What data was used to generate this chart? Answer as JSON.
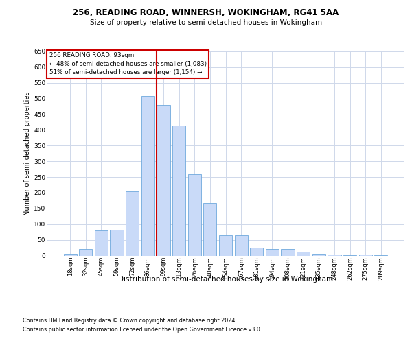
{
  "title1": "256, READING ROAD, WINNERSH, WOKINGHAM, RG41 5AA",
  "title2": "Size of property relative to semi-detached houses in Wokingham",
  "xlabel": "Distribution of semi-detached houses by size in Wokingham",
  "ylabel": "Number of semi-detached properties",
  "footnote1": "Contains HM Land Registry data © Crown copyright and database right 2024.",
  "footnote2": "Contains public sector information licensed under the Open Government Licence v3.0.",
  "annotation_title": "256 READING ROAD: 93sqm",
  "annotation_line1": "← 48% of semi-detached houses are smaller (1,083)",
  "annotation_line2": "51% of semi-detached houses are larger (1,154) →",
  "bar_color": "#c9daf8",
  "bar_edge_color": "#6fa8dc",
  "vline_color": "#cc0000",
  "annotation_box_edge": "#cc0000",
  "grid_color": "#cfd8ea",
  "categories": [
    "18sqm",
    "32sqm",
    "45sqm",
    "59sqm",
    "72sqm",
    "86sqm",
    "99sqm",
    "113sqm",
    "126sqm",
    "140sqm",
    "154sqm",
    "167sqm",
    "181sqm",
    "194sqm",
    "208sqm",
    "221sqm",
    "235sqm",
    "248sqm",
    "262sqm",
    "275sqm",
    "289sqm"
  ],
  "values": [
    5,
    20,
    80,
    82,
    205,
    508,
    480,
    415,
    258,
    168,
    65,
    65,
    25,
    20,
    20,
    13,
    5,
    4,
    2,
    4,
    2
  ],
  "ylim": [
    0,
    650
  ],
  "yticks": [
    0,
    50,
    100,
    150,
    200,
    250,
    300,
    350,
    400,
    450,
    500,
    550,
    600,
    650
  ],
  "vline_pos": 5.575,
  "figsize": [
    6.0,
    5.0
  ],
  "dpi": 100
}
